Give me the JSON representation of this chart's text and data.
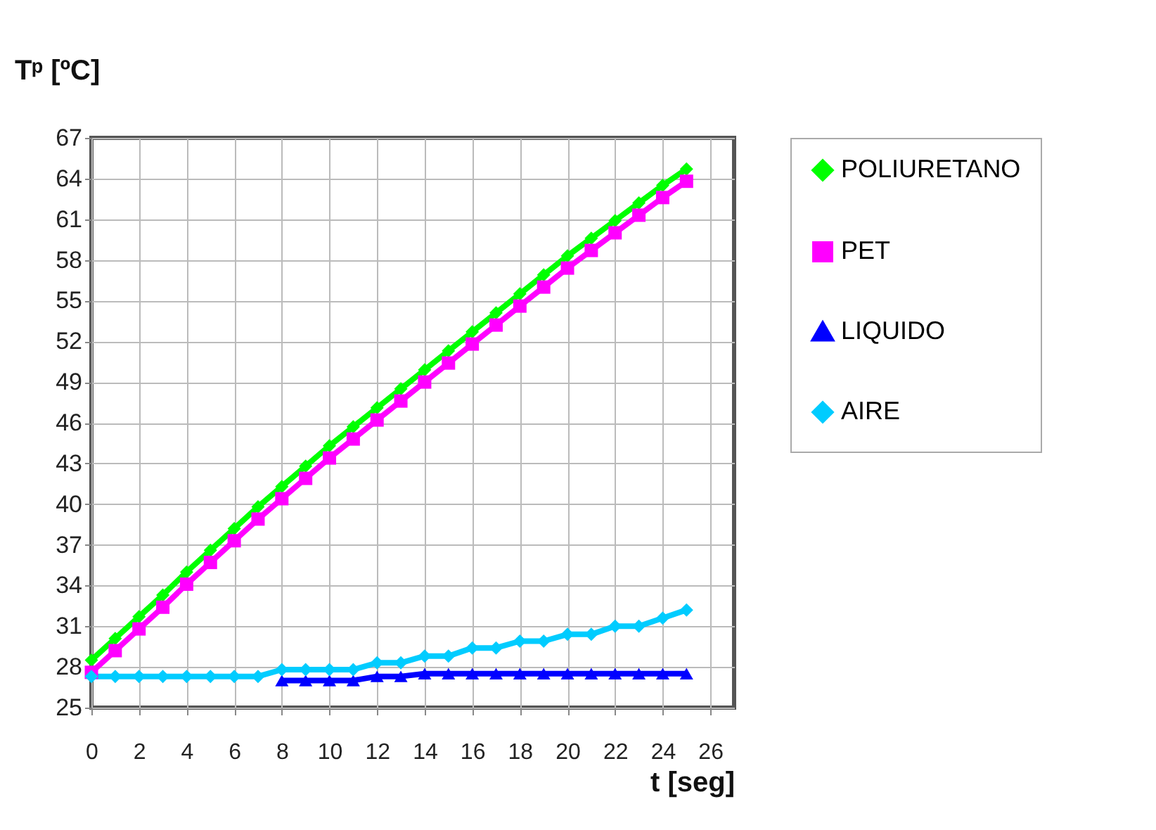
{
  "chart_data": {
    "type": "line",
    "xlabel": "t [seg]",
    "ylabel": "Tᵖ [ºC]",
    "x": [
      0,
      1,
      2,
      3,
      4,
      5,
      6,
      7,
      8,
      9,
      10,
      11,
      12,
      13,
      14,
      15,
      16,
      17,
      18,
      19,
      20,
      21,
      22,
      23,
      24,
      25
    ],
    "xlim": [
      0,
      27
    ],
    "xticks": [
      0,
      2,
      4,
      6,
      8,
      10,
      12,
      14,
      16,
      18,
      20,
      22,
      24,
      26
    ],
    "ylim": [
      25,
      67
    ],
    "yticks": [
      25,
      28,
      31,
      34,
      37,
      40,
      43,
      46,
      49,
      52,
      55,
      58,
      61,
      64,
      67
    ],
    "grid": true,
    "legend": "right",
    "line_style": "solid",
    "series": [
      {
        "name": "POLIURETANO",
        "color": "#00ff00",
        "marker": "diamond",
        "values": [
          28.5,
          30.1,
          31.7,
          33.3,
          35.0,
          36.6,
          38.2,
          39.8,
          41.3,
          42.8,
          44.3,
          45.7,
          47.1,
          48.5,
          49.9,
          51.3,
          52.7,
          54.1,
          55.5,
          56.9,
          58.3,
          59.6,
          60.9,
          62.2,
          63.5,
          64.7
        ]
      },
      {
        "name": "PET",
        "color": "#ff00ff",
        "marker": "square",
        "values": [
          27.6,
          29.2,
          30.8,
          32.4,
          34.1,
          35.7,
          37.3,
          38.9,
          40.4,
          41.9,
          43.4,
          44.8,
          46.2,
          47.6,
          49.0,
          50.4,
          51.8,
          53.2,
          54.6,
          56.0,
          57.4,
          58.7,
          60.0,
          61.3,
          62.6,
          63.8
        ]
      },
      {
        "name": "LIQUIDO",
        "color": "#0000ff",
        "marker": "triangle",
        "values": [
          null,
          null,
          null,
          null,
          null,
          null,
          null,
          null,
          27.0,
          27.0,
          27.0,
          27.0,
          27.3,
          27.3,
          27.5,
          27.5,
          27.5,
          27.5,
          27.5,
          27.5,
          27.5,
          27.5,
          27.5,
          27.5,
          27.5,
          27.5
        ]
      },
      {
        "name": "AIRE",
        "color": "#00ccff",
        "marker": "diamond",
        "values": [
          27.3,
          27.3,
          27.3,
          27.3,
          27.3,
          27.3,
          27.3,
          27.3,
          27.8,
          27.8,
          27.8,
          27.8,
          28.3,
          28.3,
          28.8,
          28.8,
          29.4,
          29.4,
          29.9,
          29.9,
          30.4,
          30.4,
          31.0,
          31.0,
          31.6,
          32.2
        ]
      }
    ]
  }
}
